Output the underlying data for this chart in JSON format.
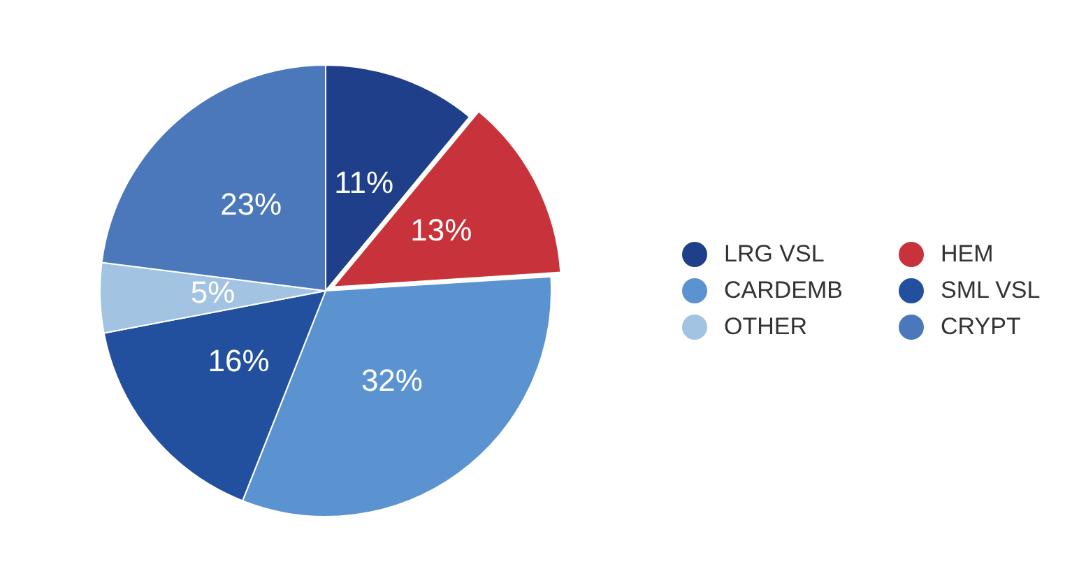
{
  "chart_data": {
    "type": "pie",
    "categories": [
      "LRG VSL",
      "HEM",
      "CARDEMB",
      "SML VSL",
      "OTHER",
      "CRYPT"
    ],
    "values": [
      11,
      13,
      32,
      16,
      5,
      23
    ],
    "value_labels": [
      "11%",
      "13%",
      "32%",
      "16%",
      "5%",
      "23%"
    ],
    "colors": [
      "#1f3f8a",
      "#c8323a",
      "#5b93d0",
      "#22509e",
      "#a3c3e3",
      "#4a78ba"
    ],
    "legend": "right"
  }
}
